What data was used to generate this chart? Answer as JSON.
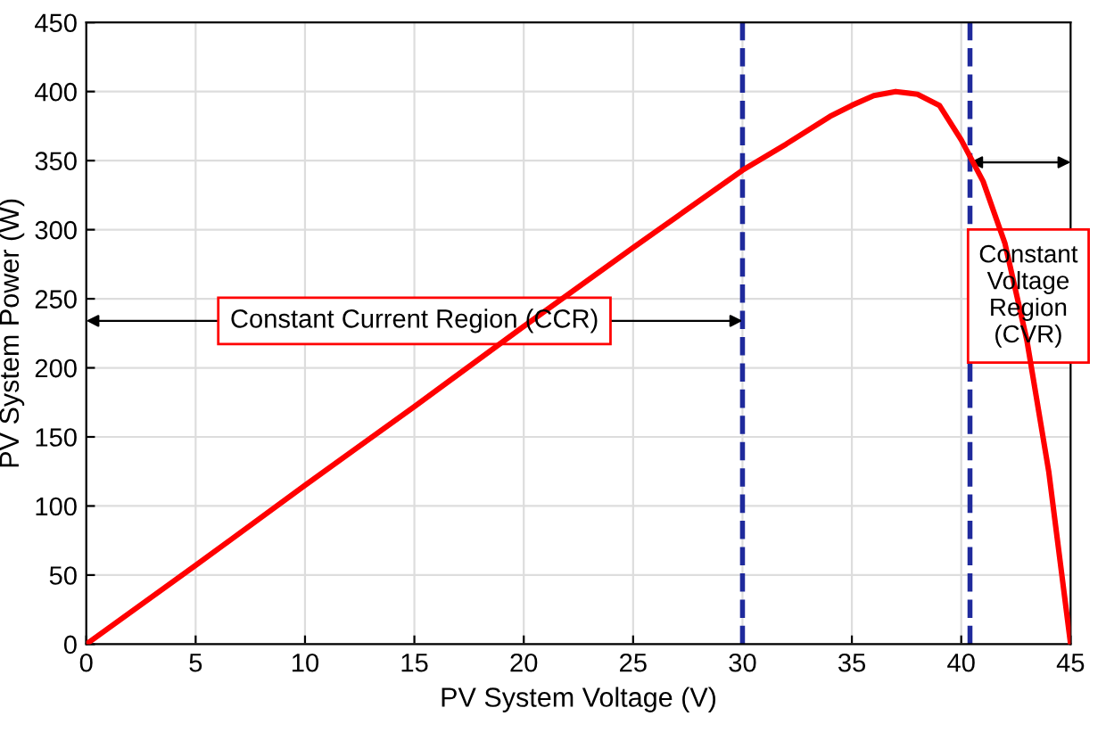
{
  "chart_data": {
    "type": "line",
    "xlabel": "PV System Voltage (V)",
    "ylabel": "PV System Power (W)",
    "x": [
      0,
      5,
      10,
      15,
      20,
      25,
      30,
      32,
      34,
      35,
      36,
      37,
      38,
      39,
      40,
      41,
      42,
      43,
      44,
      45
    ],
    "series": [
      {
        "color": "#ff0000",
        "values": [
          0,
          57,
          115,
          172,
          230,
          287,
          343,
          362,
          382,
          390,
          397,
          400,
          398,
          390,
          365,
          335,
          290,
          220,
          125,
          0
        ]
      }
    ],
    "xlim": [
      0,
      45
    ],
    "xticks": [
      0,
      5,
      10,
      15,
      20,
      25,
      30,
      35,
      40,
      45
    ],
    "ylim": [
      0,
      450
    ],
    "yticks": [
      0,
      50,
      100,
      150,
      200,
      250,
      300,
      350,
      400,
      450
    ],
    "grid": true,
    "marker": "none",
    "line_style": "solid",
    "ref_lines": [
      {
        "axis": "x",
        "value": 30,
        "color": "#1f2a9c",
        "line_style": "dashed"
      },
      {
        "axis": "x",
        "value": 40.4,
        "color": "#1f2a9c",
        "line_style": "dashed"
      }
    ],
    "annotations": [
      "Constant Current Region (CCR)",
      "Constant\nVoltage\nRegion\n(CVR)"
    ]
  }
}
